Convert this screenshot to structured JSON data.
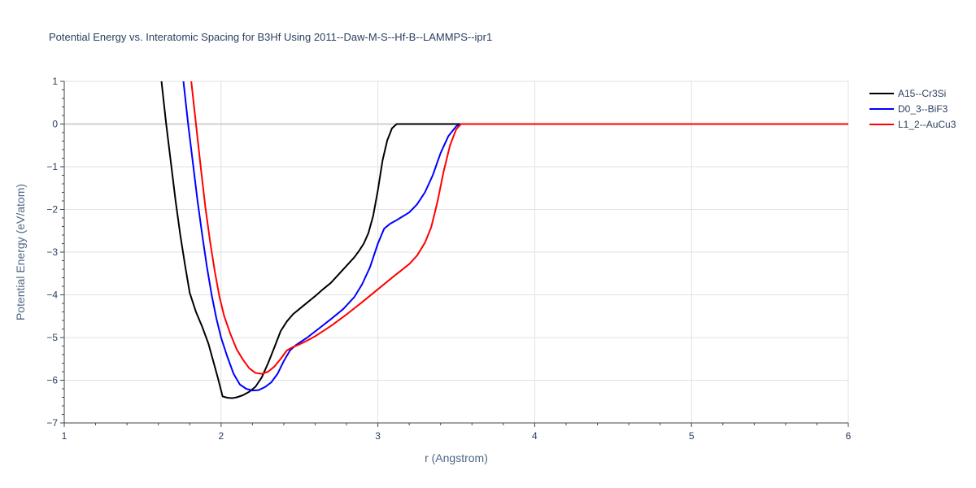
{
  "chart_data": {
    "type": "line",
    "title": "Potential Energy vs. Interatomic Spacing for B3Hf Using 2011--Daw-M-S--Hf-B--LAMMPS--ipr1",
    "xlabel": "r (Angstrom)",
    "ylabel": "Potential Energy (eV/atom)",
    "xlim": [
      1,
      6
    ],
    "ylim": [
      -7,
      1
    ],
    "x_ticks": [
      1,
      2,
      3,
      4,
      5,
      6
    ],
    "x_tick_labels": [
      "1",
      "2",
      "3",
      "4",
      "5",
      "6"
    ],
    "y_ticks": [
      1,
      0,
      -1,
      -2,
      -3,
      -4,
      -5,
      -6,
      -7
    ],
    "y_tick_labels": [
      "1",
      "0",
      "−1",
      "−2",
      "−3",
      "−4",
      "−5",
      "−6",
      "−7"
    ],
    "grid": true,
    "legend_position": "top-right",
    "series": [
      {
        "name": "A15--Cr3Si",
        "color": "#000000",
        "x": [
          1.62,
          1.65,
          1.68,
          1.71,
          1.74,
          1.77,
          1.8,
          1.84,
          1.88,
          1.92,
          1.95,
          1.98,
          2.01,
          2.04,
          2.07,
          2.1,
          2.14,
          2.18,
          2.22,
          2.26,
          2.3,
          2.34,
          2.38,
          2.42,
          2.46,
          2.5,
          2.55,
          2.6,
          2.65,
          2.7,
          2.75,
          2.8,
          2.85,
          2.88,
          2.91,
          2.94,
          2.97,
          3.0,
          3.03,
          3.06,
          3.09,
          3.12,
          3.15,
          3.17,
          3.2,
          3.3,
          3.4,
          3.5,
          3.6,
          4.0,
          4.5,
          5.0,
          5.5,
          6.0
        ],
        "y": [
          1.0,
          0.0,
          -0.9,
          -1.8,
          -2.6,
          -3.3,
          -3.95,
          -4.4,
          -4.75,
          -5.15,
          -5.55,
          -5.95,
          -6.38,
          -6.41,
          -6.42,
          -6.4,
          -6.35,
          -6.27,
          -6.15,
          -5.93,
          -5.6,
          -5.23,
          -4.85,
          -4.62,
          -4.45,
          -4.33,
          -4.18,
          -4.03,
          -3.87,
          -3.72,
          -3.52,
          -3.32,
          -3.12,
          -2.97,
          -2.8,
          -2.55,
          -2.15,
          -1.55,
          -0.85,
          -0.38,
          -0.1,
          0.0,
          0.0,
          0.0,
          0.0,
          0.0,
          0.0,
          0.0,
          0.0,
          0.0,
          0.0,
          0.0,
          0.0,
          0.0
        ]
      },
      {
        "name": "D0_3--BiF3",
        "color": "#0000ff",
        "x": [
          1.76,
          1.79,
          1.82,
          1.85,
          1.88,
          1.91,
          1.94,
          1.97,
          2.0,
          2.04,
          2.08,
          2.12,
          2.16,
          2.2,
          2.24,
          2.28,
          2.32,
          2.36,
          2.4,
          2.44,
          2.48,
          2.55,
          2.62,
          2.7,
          2.78,
          2.85,
          2.9,
          2.95,
          3.0,
          3.04,
          3.08,
          3.12,
          3.16,
          3.2,
          3.25,
          3.3,
          3.35,
          3.4,
          3.45,
          3.5,
          3.53,
          3.6,
          4.0,
          4.5,
          5.0,
          5.5,
          6.0
        ],
        "y": [
          1.0,
          0.0,
          -0.9,
          -1.8,
          -2.6,
          -3.35,
          -4.0,
          -4.55,
          -5.0,
          -5.45,
          -5.85,
          -6.1,
          -6.2,
          -6.24,
          -6.23,
          -6.16,
          -6.05,
          -5.85,
          -5.55,
          -5.3,
          -5.17,
          -5.0,
          -4.8,
          -4.57,
          -4.33,
          -4.05,
          -3.75,
          -3.35,
          -2.8,
          -2.45,
          -2.33,
          -2.25,
          -2.16,
          -2.07,
          -1.88,
          -1.6,
          -1.2,
          -0.68,
          -0.28,
          -0.05,
          0.0,
          0.0,
          0.0,
          0.0,
          0.0,
          0.0,
          0.0
        ]
      },
      {
        "name": "L1_2--AuCu3",
        "color": "#ff0000",
        "x": [
          1.81,
          1.84,
          1.87,
          1.9,
          1.93,
          1.96,
          1.99,
          2.02,
          2.06,
          2.1,
          2.14,
          2.18,
          2.22,
          2.26,
          2.3,
          2.34,
          2.38,
          2.42,
          2.46,
          2.5,
          2.55,
          2.6,
          2.7,
          2.8,
          2.9,
          3.0,
          3.1,
          3.2,
          3.25,
          3.3,
          3.34,
          3.38,
          3.42,
          3.46,
          3.5,
          3.53,
          3.6,
          4.0,
          4.5,
          5.0,
          5.5,
          6.0
        ],
        "y": [
          1.0,
          0.0,
          -1.0,
          -1.95,
          -2.75,
          -3.45,
          -4.05,
          -4.5,
          -4.92,
          -5.28,
          -5.52,
          -5.72,
          -5.83,
          -5.85,
          -5.8,
          -5.68,
          -5.5,
          -5.3,
          -5.22,
          -5.16,
          -5.07,
          -4.97,
          -4.73,
          -4.46,
          -4.17,
          -3.87,
          -3.57,
          -3.28,
          -3.08,
          -2.78,
          -2.42,
          -1.82,
          -1.1,
          -0.5,
          -0.12,
          0.0,
          0.0,
          0.0,
          0.0,
          0.0,
          0.0,
          0.0
        ]
      }
    ]
  }
}
